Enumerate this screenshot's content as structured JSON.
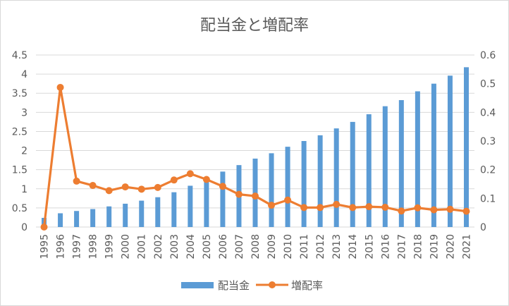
{
  "chart_data": {
    "type": "bar",
    "title": "配当金と増配率",
    "categories": [
      "1995",
      "1996",
      "1997",
      "1998",
      "1999",
      "2000",
      "2001",
      "2002",
      "2003",
      "2004",
      "2005",
      "2006",
      "2007",
      "2008",
      "2009",
      "2010",
      "2011",
      "2012",
      "2013",
      "2014",
      "2015",
      "2016",
      "2017",
      "2018",
      "2019",
      "2020",
      "2021"
    ],
    "series": [
      {
        "name": "配当金",
        "type": "bar",
        "axis": "left",
        "color": "#5b9bd5",
        "values": [
          0.24,
          0.36,
          0.42,
          0.47,
          0.54,
          0.61,
          0.69,
          0.78,
          0.91,
          1.08,
          1.27,
          1.45,
          1.62,
          1.79,
          1.93,
          2.1,
          2.25,
          2.4,
          2.58,
          2.75,
          2.95,
          3.16,
          3.32,
          3.55,
          3.75,
          3.96,
          4.18
        ]
      },
      {
        "name": "増配率",
        "type": "line",
        "axis": "right",
        "color": "#ed7d31",
        "values": [
          0.0,
          0.487,
          0.16,
          0.145,
          0.127,
          0.14,
          0.132,
          0.138,
          0.164,
          0.186,
          0.166,
          0.142,
          0.114,
          0.108,
          0.076,
          0.094,
          0.068,
          0.068,
          0.079,
          0.068,
          0.071,
          0.069,
          0.056,
          0.067,
          0.06,
          0.062,
          0.055
        ]
      }
    ],
    "y_left": {
      "ylim": [
        0,
        4.5
      ],
      "ticks": [
        "0",
        "0.5",
        "1",
        "1.5",
        "2",
        "2.5",
        "3",
        "3.5",
        "4",
        "4.5"
      ]
    },
    "y_right": {
      "ylim": [
        0,
        0.6
      ],
      "ticks": [
        "0",
        "0.1",
        "0.2",
        "0.3",
        "0.4",
        "0.5",
        "0.6"
      ]
    },
    "grid": true,
    "legend": "bottom"
  }
}
